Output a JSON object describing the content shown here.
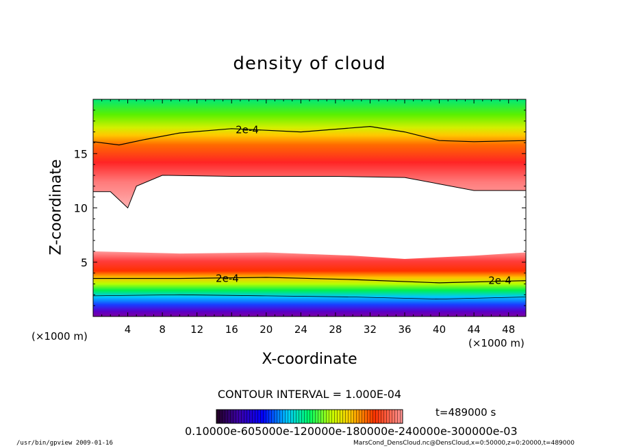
{
  "chart_data": {
    "type": "contour",
    "title": "density of cloud",
    "xlabel": "X-coordinate",
    "ylabel": "Z-coordinate",
    "x_unit": "(×1000 m)",
    "xlim": [
      0,
      50
    ],
    "ylim": [
      0,
      20
    ],
    "x_ticks": [
      4,
      8,
      12,
      16,
      20,
      24,
      28,
      32,
      36,
      40,
      44,
      48
    ],
    "y_ticks": [
      5,
      10,
      15
    ],
    "contour_label": "2e-4",
    "contour_interval": "CONTOUR INTERVAL = 1.000E-04",
    "colorbar_tick_text": "0.10000e-605000e-120000e-180000e-240000e-300000e-03",
    "colorbar_colors": [
      "#220022",
      "#3b00a8",
      "#0000ff",
      "#00c8ff",
      "#00ff64",
      "#c8ff00",
      "#ffc800",
      "#ff3200",
      "#ff9696"
    ],
    "upper_layer": {
      "contour_2e4_top": [
        [
          0,
          16.1
        ],
        [
          3,
          15.8
        ],
        [
          6,
          16.3
        ],
        [
          10,
          16.9
        ],
        [
          16,
          17.3
        ],
        [
          24,
          17.0
        ],
        [
          32,
          17.5
        ],
        [
          36,
          17.0
        ],
        [
          40,
          16.2
        ],
        [
          44,
          16.1
        ],
        [
          50,
          16.2
        ]
      ],
      "bottom_edge": [
        [
          0,
          11.5
        ],
        [
          2,
          11.5
        ],
        [
          4,
          10.0
        ],
        [
          5,
          12.0
        ],
        [
          8,
          13.0
        ],
        [
          16,
          12.9
        ],
        [
          28,
          12.9
        ],
        [
          36,
          12.8
        ],
        [
          40,
          12.2
        ],
        [
          44,
          11.6
        ],
        [
          50,
          11.6
        ]
      ]
    },
    "lower_layer": {
      "top_edge": [
        [
          0,
          6.0
        ],
        [
          10,
          5.8
        ],
        [
          20,
          5.9
        ],
        [
          30,
          5.6
        ],
        [
          36,
          5.3
        ],
        [
          44,
          5.6
        ],
        [
          50,
          5.9
        ]
      ],
      "contour_2e4": [
        [
          0,
          3.5
        ],
        [
          10,
          3.5
        ],
        [
          20,
          3.6
        ],
        [
          30,
          3.4
        ],
        [
          40,
          3.1
        ],
        [
          50,
          3.3
        ]
      ],
      "contour_lower": [
        [
          0,
          1.9
        ],
        [
          10,
          2.0
        ],
        [
          20,
          1.9
        ],
        [
          30,
          1.8
        ],
        [
          40,
          1.6
        ],
        [
          50,
          1.8
        ]
      ]
    },
    "time_label": "t=489000 s"
  },
  "footer": {
    "left": "/usr/bin/gpview  2009-01-16",
    "right": "MarsCond_DensCloud.nc@DensCloud,x=0:50000,z=0:20000,t=489000"
  }
}
